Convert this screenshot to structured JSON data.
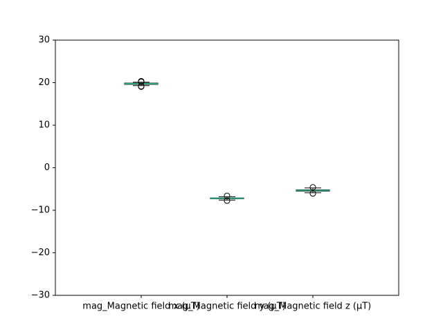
{
  "chart_data": {
    "type": "box",
    "title": "",
    "xlabel": "",
    "ylabel": "",
    "ylim": [
      -30,
      30
    ],
    "yticks": [
      30,
      20,
      10,
      0,
      -10,
      -20,
      -30
    ],
    "ytick_labels": [
      "30",
      "20",
      "10",
      "0",
      "−10",
      "−20",
      "−30"
    ],
    "grid": false,
    "legend": "none",
    "categories": [
      "mag_Magnetic field x (µT)",
      "mag_Magnetic field y (µT)",
      "mag_Magnetic field z (µT)"
    ],
    "boxes": [
      {
        "q1": 19.6,
        "median": 19.75,
        "q3": 19.9,
        "whisker_low": 19.3,
        "whisker_high": 20.1,
        "fliers": [
          19.05,
          19.15,
          20.2,
          20.35
        ]
      },
      {
        "q1": -7.3,
        "median": -7.2,
        "q3": -7.1,
        "whisker_low": -7.6,
        "whisker_high": -6.8,
        "fliers": [
          -6.6,
          -7.75
        ]
      },
      {
        "q1": -5.5,
        "median": -5.35,
        "q3": -5.2,
        "whisker_low": -5.9,
        "whisker_high": -4.75,
        "fliers": [
          -4.6,
          -6.05
        ]
      }
    ],
    "colors": {
      "box": "#000000",
      "median": "#2a9d7a",
      "axes": "#000000",
      "background": "#ffffff"
    }
  }
}
